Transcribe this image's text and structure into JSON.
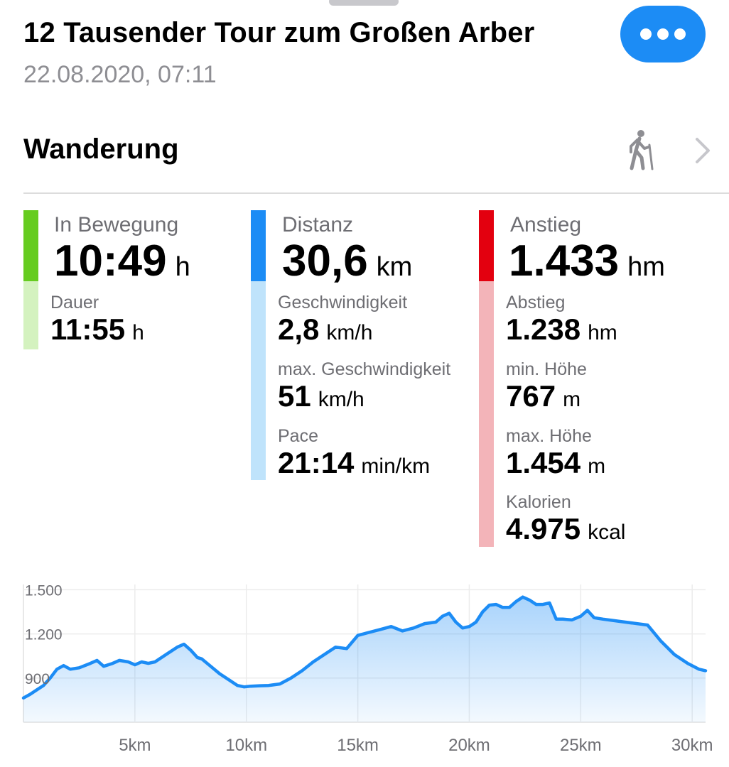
{
  "header": {
    "title": "12 Tausender Tour zum Großen Arber",
    "datetime": "22.08.2020, 07:11",
    "more_icon": "ellipsis-icon"
  },
  "activity": {
    "label": "Wanderung",
    "icon": "hiker-icon",
    "chevron": "chevron-right-icon"
  },
  "colors": {
    "green": "#66cc1f",
    "green_light": "#d4f2bf",
    "blue": "#1c8cf5",
    "blue_light": "#bfe3fb",
    "red": "#e3000f",
    "red_light": "#f3b4b9",
    "line": "#1c8cf5"
  },
  "stats": {
    "moving": {
      "label": "In Bewegung",
      "value": "10:49",
      "unit": "h"
    },
    "duration": {
      "label": "Dauer",
      "value": "11:55",
      "unit": "h"
    },
    "distance": {
      "label": "Distanz",
      "value": "30,6",
      "unit": "km"
    },
    "speed": {
      "label": "Geschwindigkeit",
      "value": "2,8",
      "unit": "km/h"
    },
    "max_speed": {
      "label": "max. Geschwindigkeit",
      "value": "51",
      "unit": "km/h"
    },
    "pace": {
      "label": "Pace",
      "value": "21:14",
      "unit": "min/km"
    },
    "ascent": {
      "label": "Anstieg",
      "value": "1.433",
      "unit": "hm"
    },
    "descent": {
      "label": "Abstieg",
      "value": "1.238",
      "unit": "hm"
    },
    "min_altitude": {
      "label": "min. Höhe",
      "value": "767",
      "unit": "m"
    },
    "max_altitude": {
      "label": "max. Höhe",
      "value": "1.454",
      "unit": "m"
    },
    "calories": {
      "label": "Kalorien",
      "value": "4.975",
      "unit": "kcal"
    }
  },
  "chart_data": {
    "type": "area",
    "title": "",
    "xlabel": "",
    "ylabel": "",
    "xlim": [
      0,
      30.6
    ],
    "ylim": [
      600,
      1550
    ],
    "x_ticks": [
      5,
      10,
      15,
      20,
      25,
      30
    ],
    "x_tick_labels": [
      "5km",
      "10km",
      "15km",
      "20km",
      "25km",
      "30km"
    ],
    "y_ticks": [
      900,
      1200,
      1500
    ],
    "y_tick_labels": [
      "900",
      "1.200",
      "1.500"
    ],
    "grid": true,
    "series": [
      {
        "x": [
          0,
          0.3,
          0.6,
          0.9,
          1.2,
          1.5,
          1.8,
          2.1,
          2.5,
          3.0,
          3.3,
          3.6,
          4.0,
          4.3,
          4.7,
          5.0,
          5.3,
          5.6,
          5.9,
          6.2,
          6.5,
          6.9,
          7.2,
          7.5,
          7.8,
          8.0,
          8.4,
          8.8,
          9.2,
          9.6,
          9.9,
          10.2,
          10.6,
          11.0,
          11.5,
          12.0,
          12.5,
          13.0,
          13.5,
          14.0,
          14.5,
          15.0,
          15.5,
          16.0,
          16.5,
          17.0,
          17.5,
          18.0,
          18.5,
          18.8,
          19.1,
          19.4,
          19.7,
          20.0,
          20.3,
          20.6,
          20.9,
          21.2,
          21.5,
          21.8,
          22.1,
          22.4,
          22.7,
          23.0,
          23.3,
          23.6,
          23.9,
          24.2,
          24.6,
          25.0,
          25.3,
          25.6,
          26.0,
          27.0,
          28.0,
          28.6,
          29.2,
          29.8,
          30.3,
          30.6
        ],
        "values": [
          765,
          790,
          820,
          850,
          900,
          960,
          985,
          960,
          970,
          1000,
          1020,
          980,
          1000,
          1020,
          1010,
          990,
          1010,
          1000,
          1010,
          1040,
          1070,
          1110,
          1130,
          1090,
          1040,
          1030,
          980,
          930,
          890,
          850,
          840,
          845,
          848,
          850,
          860,
          900,
          950,
          1010,
          1060,
          1110,
          1100,
          1190,
          1210,
          1230,
          1250,
          1220,
          1240,
          1270,
          1280,
          1320,
          1340,
          1280,
          1240,
          1250,
          1280,
          1350,
          1395,
          1400,
          1380,
          1380,
          1420,
          1450,
          1430,
          1400,
          1400,
          1410,
          1300,
          1300,
          1295,
          1320,
          1360,
          1310,
          1300,
          1280,
          1260,
          1150,
          1060,
          1000,
          960,
          950
        ]
      }
    ]
  }
}
